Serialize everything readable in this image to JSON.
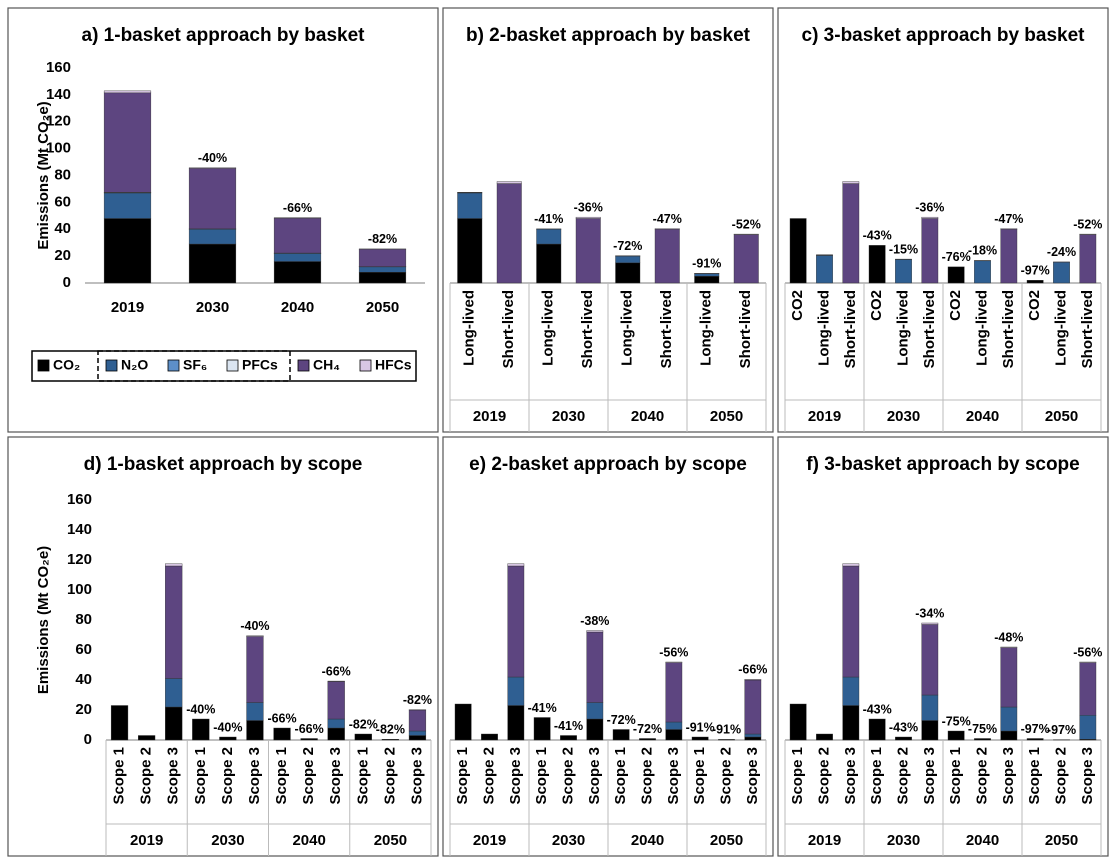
{
  "legend": [
    {
      "name": "CO₂",
      "color": "#000000"
    },
    {
      "name": "N₂O",
      "color": "#2f5f92"
    },
    {
      "name": "SF₆",
      "color": "#5d8fc8"
    },
    {
      "name": "PFCs",
      "color": "#dbe5f1"
    },
    {
      "name": "CH₄",
      "color": "#5d4580"
    },
    {
      "name": "HFCs",
      "color": "#d8c6e4"
    }
  ],
  "chart_data": [
    {
      "type": "stacked-bar",
      "title": "a) 1-basket approach by basket",
      "y_label": "Emissions (Mt CO₂e)",
      "categories": [
        "2019",
        "2030",
        "2040",
        "2050"
      ],
      "series": [
        {
          "values": [
            48,
            29,
            16,
            8
          ]
        },
        {
          "values": [
            19,
            11,
            6,
            4
          ]
        },
        {
          "values": [
            0.3,
            0.2,
            0.2,
            0.1
          ]
        },
        {
          "values": [
            0.2,
            0.1,
            0.1,
            0.1
          ]
        },
        {
          "values": [
            74,
            45,
            26,
            13
          ]
        },
        {
          "values": [
            1.5,
            0.5,
            0.3,
            0.2
          ]
        }
      ],
      "annotations": [
        null,
        "-40%",
        "-66%",
        "-82%"
      ],
      "ylim": [
        0,
        160
      ],
      "yticks": [
        0,
        20,
        40,
        60,
        80,
        100,
        120,
        140,
        160
      ]
    },
    {
      "type": "stacked-bar",
      "title": "b) 2-basket approach by basket",
      "groups": [
        "2019",
        "2030",
        "2040",
        "2050"
      ],
      "categories": [
        "Long-lived",
        "Short-lived",
        "Long-lived",
        "Short-lived",
        "Long-lived",
        "Short-lived",
        "Long-lived",
        "Short-lived"
      ],
      "series": [
        {
          "values": [
            48,
            null,
            29,
            null,
            15,
            null,
            5,
            null
          ]
        },
        {
          "values": [
            19,
            null,
            11,
            null,
            5,
            null,
            2,
            null
          ]
        },
        {
          "values": [
            0.3,
            null,
            0.2,
            null,
            0.2,
            null,
            0.1,
            null
          ]
        },
        {
          "values": [
            0.2,
            null,
            0.1,
            null,
            0.1,
            null,
            0.1,
            null
          ]
        },
        {
          "values": [
            null,
            74,
            null,
            48,
            null,
            40,
            null,
            36
          ]
        },
        {
          "values": [
            null,
            1.5,
            null,
            1,
            null,
            0.5,
            null,
            0.4
          ]
        }
      ],
      "annotations": [
        null,
        null,
        "-41%",
        "-36%",
        "-72%",
        "-47%",
        "-91%",
        "-52%"
      ],
      "ylim": [
        0,
        160
      ]
    },
    {
      "type": "stacked-bar",
      "title": "c) 3-basket approach by basket",
      "groups": [
        "2019",
        "2030",
        "2040",
        "2050"
      ],
      "categories": [
        "CO2",
        "Long-lived",
        "Short-lived",
        "CO2",
        "Long-lived",
        "Short-lived",
        "CO2",
        "Long-lived",
        "Short-lived",
        "CO2",
        "Long-lived",
        "Short-lived"
      ],
      "series": [
        {
          "values": [
            48,
            null,
            null,
            28,
            null,
            null,
            12,
            null,
            null,
            2,
            null,
            null
          ]
        },
        {
          "values": [
            null,
            20.5,
            null,
            null,
            17.5,
            null,
            null,
            16.5,
            null,
            null,
            15.5,
            null
          ]
        },
        {
          "values": [
            null,
            0.3,
            null,
            null,
            0.2,
            null,
            null,
            0.2,
            null,
            null,
            0.1,
            null
          ]
        },
        {
          "values": [
            null,
            0.2,
            null,
            null,
            0.1,
            null,
            null,
            0.1,
            null,
            null,
            0.1,
            null
          ]
        },
        {
          "values": [
            null,
            null,
            74,
            null,
            null,
            48,
            null,
            null,
            40,
            null,
            null,
            36
          ]
        },
        {
          "values": [
            null,
            null,
            1.5,
            null,
            null,
            1,
            null,
            null,
            0.5,
            null,
            null,
            0.4
          ]
        }
      ],
      "annotations": [
        null,
        null,
        null,
        "-43%",
        "-15%",
        "-36%",
        "-76%",
        "-18%",
        "-47%",
        "-97%",
        "-24%",
        "-52%"
      ],
      "ylim": [
        0,
        160
      ]
    },
    {
      "type": "stacked-bar",
      "title": "d) 1-basket approach by scope",
      "y_label": "Emissions (Mt CO₂e)",
      "groups": [
        "2019",
        "2030",
        "2040",
        "2050"
      ],
      "categories": [
        "Scope 1",
        "Scope 2",
        "Scope 3",
        "Scope 1",
        "Scope 2",
        "Scope 3",
        "Scope 1",
        "Scope 2",
        "Scope 3",
        "Scope 1",
        "Scope 2",
        "Scope 3"
      ],
      "series": [
        {
          "values": [
            23,
            3,
            22,
            14,
            2,
            13,
            8,
            1,
            8,
            4,
            0.5,
            3
          ]
        },
        {
          "values": [
            null,
            null,
            19,
            null,
            null,
            12,
            null,
            null,
            6,
            null,
            null,
            3
          ]
        },
        {
          "values": [
            null,
            null,
            null,
            null,
            null,
            null,
            null,
            null,
            null,
            null,
            null,
            null
          ]
        },
        {
          "values": [
            null,
            null,
            null,
            null,
            null,
            null,
            null,
            null,
            null,
            null,
            null,
            null
          ]
        },
        {
          "values": [
            null,
            null,
            75,
            null,
            null,
            44,
            null,
            null,
            25,
            null,
            null,
            14
          ]
        },
        {
          "values": [
            null,
            null,
            1.5,
            null,
            null,
            0.5,
            null,
            null,
            0.3,
            null,
            null,
            0.2
          ]
        }
      ],
      "annotations": [
        null,
        null,
        null,
        "-40%",
        "-40%",
        "-40%",
        "-66%",
        "-66%",
        "-66%",
        "-82%",
        "-82%",
        "-82%"
      ],
      "ylim": [
        0,
        160
      ],
      "yticks": [
        0,
        20,
        40,
        60,
        80,
        100,
        120,
        140,
        160
      ]
    },
    {
      "type": "stacked-bar",
      "title": "e) 2-basket approach by scope",
      "groups": [
        "2019",
        "2030",
        "2040",
        "2050"
      ],
      "categories": [
        "Scope 1",
        "Scope 2",
        "Scope 3",
        "Scope 1",
        "Scope 2",
        "Scope 3",
        "Scope 1",
        "Scope 2",
        "Scope 3",
        "Scope 1",
        "Scope 2",
        "Scope 3"
      ],
      "series": [
        {
          "values": [
            24,
            4,
            23,
            15,
            3,
            14,
            7,
            1,
            7,
            2,
            0.4,
            2
          ]
        },
        {
          "values": [
            null,
            null,
            19,
            null,
            null,
            11,
            null,
            null,
            5,
            null,
            null,
            2
          ]
        },
        {
          "values": [
            null,
            null,
            null,
            null,
            null,
            null,
            null,
            null,
            null,
            null,
            null,
            null
          ]
        },
        {
          "values": [
            null,
            null,
            null,
            null,
            null,
            null,
            null,
            null,
            null,
            null,
            null,
            null
          ]
        },
        {
          "values": [
            null,
            null,
            74,
            null,
            null,
            47,
            null,
            null,
            39.5,
            null,
            null,
            36
          ]
        },
        {
          "values": [
            null,
            null,
            1.5,
            null,
            null,
            1,
            null,
            null,
            0.5,
            null,
            null,
            0.4
          ]
        }
      ],
      "annotations": [
        null,
        null,
        null,
        "-41%",
        "-41%",
        "-38%",
        "-72%",
        "-72%",
        "-56%",
        "-91%",
        "-91%",
        "-66%"
      ],
      "ylim": [
        0,
        160
      ]
    },
    {
      "type": "stacked-bar",
      "title": "f) 3-basket approach by scope",
      "groups": [
        "2019",
        "2030",
        "2040",
        "2050"
      ],
      "categories": [
        "Scope 1",
        "Scope 2",
        "Scope 3",
        "Scope 1",
        "Scope 2",
        "Scope 3",
        "Scope 1",
        "Scope 2",
        "Scope 3",
        "Scope 1",
        "Scope 2",
        "Scope 3"
      ],
      "series": [
        {
          "values": [
            24,
            4,
            23,
            14,
            2,
            13,
            6,
            1,
            6,
            1,
            0.2,
            0.5
          ]
        },
        {
          "values": [
            null,
            null,
            19,
            null,
            null,
            17,
            null,
            null,
            16,
            null,
            null,
            16
          ]
        },
        {
          "values": [
            null,
            null,
            null,
            null,
            null,
            null,
            null,
            null,
            null,
            null,
            null,
            null
          ]
        },
        {
          "values": [
            null,
            null,
            null,
            null,
            null,
            null,
            null,
            null,
            null,
            null,
            null,
            null
          ]
        },
        {
          "values": [
            null,
            null,
            74,
            null,
            null,
            47,
            null,
            null,
            39.5,
            null,
            null,
            35
          ]
        },
        {
          "values": [
            null,
            null,
            1.5,
            null,
            null,
            1,
            null,
            null,
            0.5,
            null,
            null,
            0.5
          ]
        }
      ],
      "annotations": [
        null,
        null,
        null,
        "-43%",
        "-43%",
        "-34%",
        "-75%",
        "-75%",
        "-48%",
        "-97%",
        "-97%",
        "-56%"
      ],
      "ylim": [
        0,
        160
      ]
    }
  ]
}
